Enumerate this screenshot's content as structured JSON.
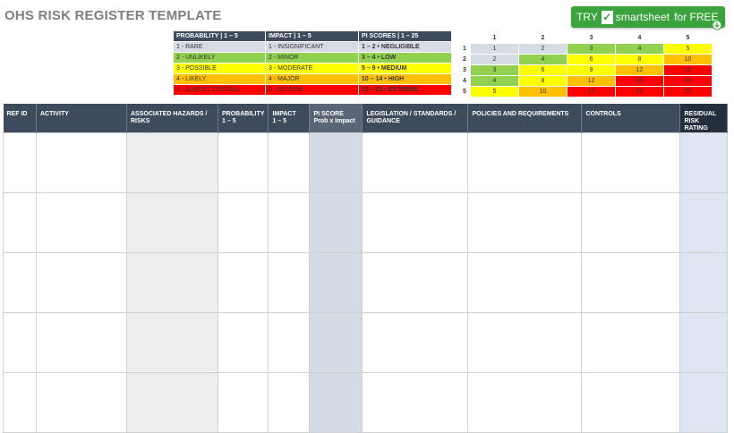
{
  "title": "OHS RISK REGISTER TEMPLATE",
  "cta": {
    "try": "TRY",
    "check": "✓",
    "brand": "smartsheet",
    "free": "for FREE"
  },
  "legend": {
    "headers": [
      "PROBABILITY | 1 – 5",
      "IMPACT | 1 – 5",
      "PI SCORES | 1 – 25"
    ],
    "rows": [
      {
        "p": "1 - RARE",
        "i": "1 - INSIGNIFICANT",
        "s": "1 – 2 • NEGLIGIBLE",
        "color": "#d6dce4"
      },
      {
        "p": "2 - UNLIKELY",
        "i": "2 - MINOR",
        "s": "3 – 4 • LOW",
        "color": "#92d050"
      },
      {
        "p": "3 - POSSIBLE",
        "i": "3 - MODERATE",
        "s": "5 – 9 • MEDIUM",
        "color": "#ffff00"
      },
      {
        "p": "4 - LIKELY",
        "i": "4 - MAJOR",
        "s": "10 – 14 • HIGH",
        "color": "#ffc000"
      },
      {
        "p": "5 - ALMOST CERTAIN",
        "i": "5 - SEVERE",
        "s": "15 – 25 • EXTREME",
        "color": "#ff0000"
      }
    ]
  },
  "matrix": {
    "col_headers": [
      "1",
      "2",
      "3",
      "4",
      "5"
    ],
    "rows": [
      {
        "label": "1",
        "cells": [
          "1",
          "2",
          "3",
          "4",
          "5"
        ]
      },
      {
        "label": "2",
        "cells": [
          "2",
          "4",
          "6",
          "8",
          "10"
        ]
      },
      {
        "label": "3",
        "cells": [
          "3",
          "6",
          "9",
          "12",
          "15"
        ]
      },
      {
        "label": "4",
        "cells": [
          "4",
          "8",
          "12",
          "16",
          "20"
        ]
      },
      {
        "label": "5",
        "cells": [
          "5",
          "10",
          "15",
          "20",
          "25"
        ]
      }
    ],
    "colors": {
      "negligible": "#d6dce4",
      "low": "#92d050",
      "medium": "#ffff00",
      "high": "#ffc000",
      "extreme": "#ff0000"
    }
  },
  "register": {
    "columns": [
      {
        "l1": "REF ID",
        "l2": ""
      },
      {
        "l1": "ACTIVITY",
        "l2": ""
      },
      {
        "l1": "ASSOCIATED HAZARDS /",
        "l2": "RISKS"
      },
      {
        "l1": "PROBABILITY",
        "l2": "1 – 5"
      },
      {
        "l1": "IMPACT",
        "l2": "1 – 5"
      },
      {
        "l1": "PI SCORE",
        "l2": "Prob x Impact"
      },
      {
        "l1": "LEGISLATION / STANDARDS /",
        "l2": "GUIDANCE"
      },
      {
        "l1": "POLICIES AND REQUIREMENTS",
        "l2": ""
      },
      {
        "l1": "CONTROLS",
        "l2": ""
      },
      {
        "l1": "RESIDUAL",
        "l2": "RISK RATING"
      }
    ],
    "row_count": 5
  }
}
